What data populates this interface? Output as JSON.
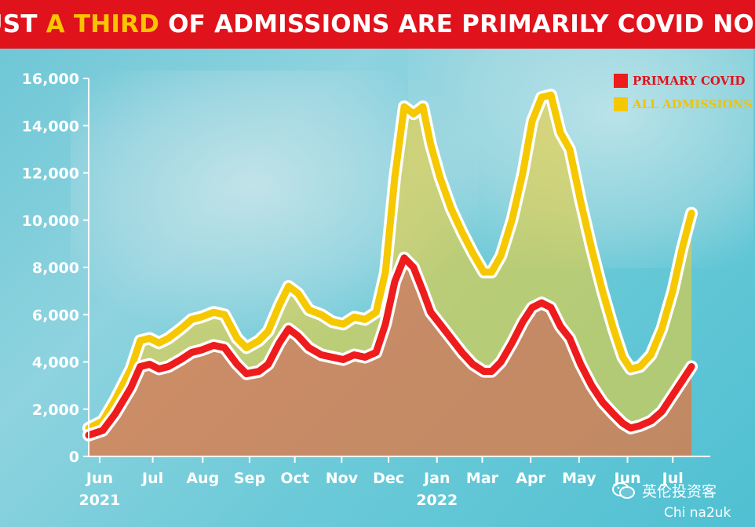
{
  "headline": {
    "part1": "JUST ",
    "highlight": "A THIRD",
    "part2": " OF ADMISSIONS ARE PRIMARILY COVID NOW"
  },
  "watermark": {
    "icon": "wechat-icon",
    "text": "英伦投资客"
  },
  "credit": "Chi na2uk",
  "colors": {
    "banner": "#e0121b",
    "highlight": "#f9c400",
    "primary_covid": "#ee1c1c",
    "all_admissions": "#f5c800"
  },
  "chart_data": {
    "type": "area",
    "ylim": [
      0,
      16000
    ],
    "yticks": [
      0,
      2000,
      4000,
      6000,
      8000,
      10000,
      12000,
      14000,
      16000
    ],
    "ytick_labels": [
      "0",
      "2,000",
      "4,000",
      "6,000",
      "8,000",
      "10,000",
      "12,000",
      "14,000",
      "16,000"
    ],
    "x_range": [
      "2021-06-01",
      "2022-07-04"
    ],
    "x_tick_labels": [
      {
        "label": "Jun",
        "year": "2021",
        "date": "2021-06-08"
      },
      {
        "label": "Jul",
        "date": "2021-07-12"
      },
      {
        "label": "Aug",
        "date": "2021-08-13"
      },
      {
        "label": "Sep",
        "date": "2021-09-12"
      },
      {
        "label": "Oct",
        "date": "2021-10-11"
      },
      {
        "label": "Nov",
        "date": "2021-11-10"
      },
      {
        "label": "Dec",
        "date": "2021-12-10"
      },
      {
        "label": "Jan",
        "year": "2022",
        "date": "2022-01-10"
      },
      {
        "label": "Mar",
        "date": "2022-02-08"
      },
      {
        "label": "Apr",
        "date": "2022-03-11"
      },
      {
        "label": "May",
        "date": "2022-04-11"
      },
      {
        "label": "Jun",
        "date": "2022-05-12"
      },
      {
        "label": "Jul",
        "date": "2022-06-10"
      }
    ],
    "grid": false,
    "legend_position": "top-right",
    "series": [
      {
        "name": "ALL ADMISSIONS",
        "color": "#f5c800",
        "points": [
          [
            "2021-06-01",
            1200
          ],
          [
            "2021-06-10",
            1500
          ],
          [
            "2021-06-18",
            2400
          ],
          [
            "2021-06-28",
            3700
          ],
          [
            "2021-07-04",
            4900
          ],
          [
            "2021-07-10",
            5000
          ],
          [
            "2021-07-16",
            4800
          ],
          [
            "2021-07-22",
            5000
          ],
          [
            "2021-07-30",
            5400
          ],
          [
            "2021-08-06",
            5800
          ],
          [
            "2021-08-12",
            5900
          ],
          [
            "2021-08-20",
            6100
          ],
          [
            "2021-08-27",
            6000
          ],
          [
            "2021-09-04",
            5000
          ],
          [
            "2021-09-10",
            4600
          ],
          [
            "2021-09-18",
            4900
          ],
          [
            "2021-09-24",
            5300
          ],
          [
            "2021-10-01",
            6400
          ],
          [
            "2021-10-07",
            7200
          ],
          [
            "2021-10-13",
            6900
          ],
          [
            "2021-10-20",
            6200
          ],
          [
            "2021-10-28",
            6000
          ],
          [
            "2021-11-04",
            5700
          ],
          [
            "2021-11-11",
            5600
          ],
          [
            "2021-11-18",
            5900
          ],
          [
            "2021-11-25",
            5800
          ],
          [
            "2021-12-02",
            6100
          ],
          [
            "2021-12-08",
            7800
          ],
          [
            "2021-12-14",
            11800
          ],
          [
            "2021-12-20",
            14800
          ],
          [
            "2021-12-26",
            14500
          ],
          [
            "2022-01-01",
            14800
          ],
          [
            "2022-01-06",
            13200
          ],
          [
            "2022-01-12",
            11800
          ],
          [
            "2022-01-19",
            10500
          ],
          [
            "2022-01-26",
            9500
          ],
          [
            "2022-02-02",
            8600
          ],
          [
            "2022-02-09",
            7800
          ],
          [
            "2022-02-14",
            7800
          ],
          [
            "2022-02-20",
            8500
          ],
          [
            "2022-02-27",
            10000
          ],
          [
            "2022-03-06",
            12000
          ],
          [
            "2022-03-12",
            14200
          ],
          [
            "2022-03-18",
            15200
          ],
          [
            "2022-03-24",
            15300
          ],
          [
            "2022-03-30",
            13700
          ],
          [
            "2022-04-05",
            13000
          ],
          [
            "2022-04-12",
            10800
          ],
          [
            "2022-04-19",
            8800
          ],
          [
            "2022-04-26",
            7000
          ],
          [
            "2022-05-03",
            5400
          ],
          [
            "2022-05-09",
            4200
          ],
          [
            "2022-05-14",
            3700
          ],
          [
            "2022-05-20",
            3800
          ],
          [
            "2022-05-27",
            4300
          ],
          [
            "2022-06-03",
            5400
          ],
          [
            "2022-06-10",
            7000
          ],
          [
            "2022-06-16",
            8800
          ],
          [
            "2022-06-22",
            10300
          ]
        ]
      },
      {
        "name": "PRIMARY COVID",
        "color": "#ee1c1c",
        "points": [
          [
            "2021-06-01",
            900
          ],
          [
            "2021-06-10",
            1100
          ],
          [
            "2021-06-18",
            1800
          ],
          [
            "2021-06-28",
            2900
          ],
          [
            "2021-07-04",
            3800
          ],
          [
            "2021-07-10",
            3900
          ],
          [
            "2021-07-16",
            3700
          ],
          [
            "2021-07-22",
            3800
          ],
          [
            "2021-07-30",
            4100
          ],
          [
            "2021-08-06",
            4400
          ],
          [
            "2021-08-12",
            4500
          ],
          [
            "2021-08-20",
            4700
          ],
          [
            "2021-08-27",
            4600
          ],
          [
            "2021-09-04",
            3900
          ],
          [
            "2021-09-10",
            3500
          ],
          [
            "2021-09-18",
            3600
          ],
          [
            "2021-09-24",
            3900
          ],
          [
            "2021-10-01",
            4800
          ],
          [
            "2021-10-07",
            5400
          ],
          [
            "2021-10-13",
            5100
          ],
          [
            "2021-10-20",
            4600
          ],
          [
            "2021-10-28",
            4300
          ],
          [
            "2021-11-04",
            4200
          ],
          [
            "2021-11-11",
            4100
          ],
          [
            "2021-11-18",
            4300
          ],
          [
            "2021-11-25",
            4200
          ],
          [
            "2021-12-02",
            4400
          ],
          [
            "2021-12-08",
            5600
          ],
          [
            "2021-12-14",
            7400
          ],
          [
            "2021-12-20",
            8400
          ],
          [
            "2021-12-26",
            8000
          ],
          [
            "2022-01-01",
            7000
          ],
          [
            "2022-01-06",
            6100
          ],
          [
            "2022-01-12",
            5600
          ],
          [
            "2022-01-19",
            5000
          ],
          [
            "2022-01-26",
            4400
          ],
          [
            "2022-02-02",
            3900
          ],
          [
            "2022-02-09",
            3600
          ],
          [
            "2022-02-14",
            3600
          ],
          [
            "2022-02-20",
            4000
          ],
          [
            "2022-02-27",
            4800
          ],
          [
            "2022-03-06",
            5700
          ],
          [
            "2022-03-12",
            6300
          ],
          [
            "2022-03-18",
            6500
          ],
          [
            "2022-03-24",
            6300
          ],
          [
            "2022-03-30",
            5500
          ],
          [
            "2022-04-05",
            5000
          ],
          [
            "2022-04-12",
            3900
          ],
          [
            "2022-04-19",
            3000
          ],
          [
            "2022-04-26",
            2300
          ],
          [
            "2022-05-03",
            1800
          ],
          [
            "2022-05-09",
            1400
          ],
          [
            "2022-05-14",
            1200
          ],
          [
            "2022-05-20",
            1300
          ],
          [
            "2022-05-27",
            1500
          ],
          [
            "2022-06-03",
            1900
          ],
          [
            "2022-06-10",
            2600
          ],
          [
            "2022-06-16",
            3200
          ],
          [
            "2022-06-22",
            3800
          ]
        ]
      }
    ]
  }
}
